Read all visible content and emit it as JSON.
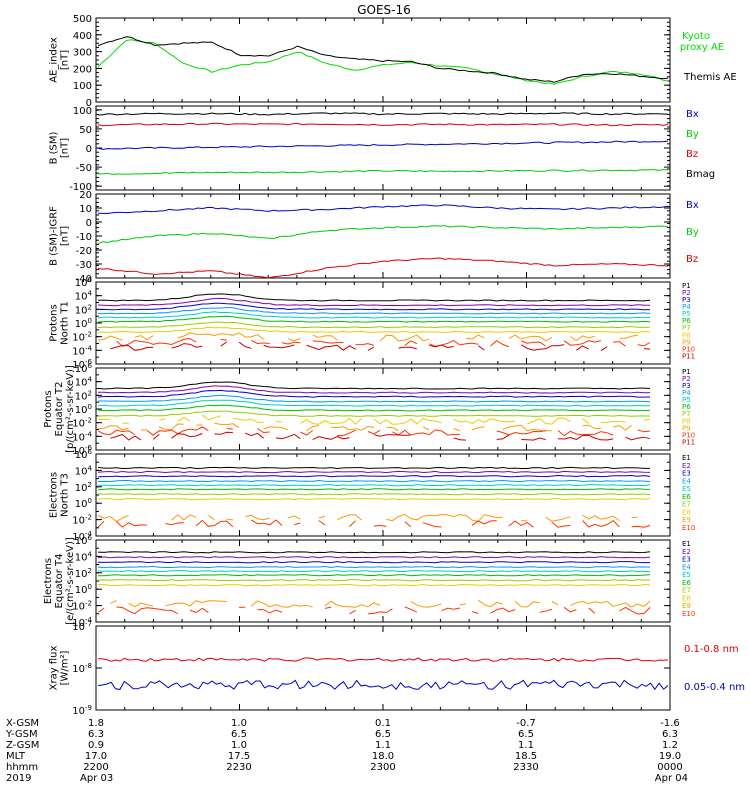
{
  "title": "GOES-16",
  "chart_data": [
    {
      "type": "line",
      "panel": "ae",
      "ylabel": [
        "AE_index",
        "[nT]"
      ],
      "ylim": [
        0,
        500
      ],
      "yticks": [
        "500",
        "400",
        "300",
        "200",
        "100",
        "0"
      ],
      "x": [
        0,
        0.05,
        0.1,
        0.15,
        0.2,
        0.25,
        0.3,
        0.35,
        0.4,
        0.45,
        0.5,
        0.55,
        0.6,
        0.65,
        0.7,
        0.75,
        0.8,
        0.85,
        0.9,
        0.95,
        1
      ],
      "series": [
        {
          "name": "Kyoto proxy AE",
          "color": "#00dd00",
          "values": [
            210,
            370,
            350,
            230,
            180,
            220,
            240,
            300,
            230,
            190,
            220,
            235,
            215,
            200,
            165,
            130,
            105,
            150,
            180,
            170,
            125
          ]
        },
        {
          "name": "Themis AE",
          "color": "#000000",
          "values": [
            340,
            390,
            340,
            350,
            355,
            280,
            275,
            330,
            275,
            255,
            245,
            240,
            200,
            185,
            170,
            135,
            120,
            165,
            170,
            155,
            140
          ]
        }
      ]
    },
    {
      "type": "line",
      "panel": "b-sm",
      "ylabel": [
        "B (SM)",
        "[nT]"
      ],
      "ylim": [
        -110,
        110
      ],
      "yticks": [
        "100",
        "50",
        "0",
        "-50",
        "-100"
      ],
      "x": [
        0,
        0.1,
        0.2,
        0.3,
        0.4,
        0.5,
        0.6,
        0.7,
        0.8,
        0.9,
        1
      ],
      "series": [
        {
          "name": "Bx",
          "color": "#0000cc",
          "values": [
            -2,
            0,
            2,
            4,
            6,
            8,
            10,
            12,
            14,
            16,
            18
          ]
        },
        {
          "name": "By",
          "color": "#00cc00",
          "values": [
            -68,
            -66,
            -64,
            -64,
            -62,
            -60,
            -61,
            -60,
            -59,
            -58,
            -58
          ]
        },
        {
          "name": "Bz",
          "color": "#dd0000",
          "values": [
            60,
            62,
            63,
            62,
            63,
            61,
            62,
            61,
            62,
            60,
            61
          ]
        },
        {
          "name": "Bmag",
          "color": "#000000",
          "values": [
            88,
            90,
            90,
            88,
            91,
            89,
            90,
            89,
            91,
            89,
            90
          ]
        }
      ]
    },
    {
      "type": "line",
      "panel": "b-sm-igrf",
      "ylabel": [
        "B (SM)-IGRF",
        "[nT]"
      ],
      "ylim": [
        -40,
        20
      ],
      "yticks": [
        "20",
        "10",
        "0",
        "-10",
        "-20",
        "-30",
        "-40"
      ],
      "x": [
        0,
        0.1,
        0.2,
        0.3,
        0.4,
        0.5,
        0.6,
        0.7,
        0.8,
        0.9,
        1
      ],
      "series": [
        {
          "name": "Bx",
          "color": "#0000cc",
          "values": [
            6,
            8,
            10,
            8,
            9,
            11,
            12,
            10,
            9,
            10,
            11
          ]
        },
        {
          "name": "By",
          "color": "#00cc00",
          "values": [
            -15,
            -10,
            -8,
            -12,
            -6,
            -4,
            -3,
            -4,
            -5,
            -4,
            -3
          ]
        },
        {
          "name": "Bz",
          "color": "#dd0000",
          "values": [
            -33,
            -37,
            -35,
            -40,
            -33,
            -28,
            -26,
            -28,
            -31,
            -30,
            -31
          ]
        }
      ]
    },
    {
      "type": "line",
      "panel": "protons-north",
      "ylabel": [
        "Protons",
        "North T1"
      ],
      "log": true,
      "ylim_exp": [
        -6,
        6
      ],
      "yticks_exp": [
        6,
        4,
        2,
        0,
        -2,
        -4,
        -6
      ],
      "channels": [
        "P1",
        "P2",
        "P3",
        "P4",
        "P5",
        "P6",
        "P7",
        "P8",
        "P9",
        "P10",
        "P11"
      ],
      "levels_exp": [
        3.3,
        2.6,
        2.0,
        1.4,
        0.8,
        0.2,
        -0.6,
        -1.3,
        -2.2,
        -3.0,
        -3.6
      ],
      "bump_exp": 1.0
    },
    {
      "type": "line",
      "panel": "protons-equator",
      "ylabel": [
        "Protons",
        "Equator T2",
        "[p/(cm²-s-sr-keV)]"
      ],
      "log": true,
      "ylim_exp": [
        -6,
        6
      ],
      "yticks_exp": [
        6,
        4,
        2,
        0,
        -2,
        -4,
        -6
      ],
      "channels": [
        "P1",
        "P2",
        "P3",
        "P4",
        "P5",
        "P6",
        "P7",
        "P8",
        "P9",
        "P10",
        "P11"
      ],
      "levels_exp": [
        3.0,
        2.4,
        1.8,
        1.1,
        0.5,
        -0.2,
        -1.0,
        -1.8,
        -2.8,
        -3.5,
        -4.1
      ],
      "bump_exp": 1.0
    },
    {
      "type": "line",
      "panel": "electrons-north",
      "ylabel": [
        "Electrons",
        "North T3"
      ],
      "log": true,
      "ylim_exp": [
        -4,
        6
      ],
      "yticks_exp": [
        6,
        4,
        2,
        0,
        -2,
        -4
      ],
      "channels": [
        "E1",
        "E2",
        "E3",
        "E4",
        "E5",
        "E6",
        "E7",
        "E8",
        "E9",
        "E10"
      ],
      "levels_exp": [
        4.3,
        3.8,
        3.3,
        2.7,
        2.2,
        1.7,
        1.1,
        0.5,
        -1.8,
        -2.5
      ],
      "bump_exp": 0
    },
    {
      "type": "line",
      "panel": "electrons-equator",
      "ylabel": [
        "Electrons",
        "Equator T4",
        "[e/(cm²-s-sr-keV)]"
      ],
      "log": true,
      "ylim_exp": [
        -4,
        6
      ],
      "yticks_exp": [
        6,
        4,
        2,
        0,
        -2,
        -4
      ],
      "channels": [
        "E1",
        "E2",
        "E3",
        "E4",
        "E5",
        "E6",
        "E7",
        "E8",
        "E9",
        "E10"
      ],
      "levels_exp": [
        4.5,
        3.9,
        3.3,
        2.7,
        2.2,
        1.7,
        1.1,
        0.5,
        -1.8,
        -2.6
      ],
      "bump_exp": 0
    },
    {
      "type": "line",
      "panel": "xray",
      "ylabel": [
        "Xray flux",
        "[W/m²]"
      ],
      "log": true,
      "ylim_exp": [
        -9,
        -7
      ],
      "yticks_exp": [
        -7,
        -8,
        -9
      ],
      "series": [
        {
          "name": "0.1-0.8 nm",
          "color": "#dd0000",
          "level_exp": -7.8
        },
        {
          "name": "0.05-0.4 nm",
          "color": "#0000cc",
          "level_exp": -8.4
        }
      ]
    }
  ],
  "channel_colors": [
    "#000000",
    "#8800aa",
    "#0000cc",
    "#0099ff",
    "#00cccc",
    "#00bb00",
    "#99cc00",
    "#eecc00",
    "#ff9900",
    "#ff3300",
    "#cc0000"
  ],
  "x_axis": {
    "rows": [
      {
        "label": "X-GSM",
        "values": [
          "1.8",
          "1.0",
          "0.1",
          "-0.7",
          "-1.6"
        ]
      },
      {
        "label": "Y-GSM",
        "values": [
          "6.3",
          "6.5",
          "6.5",
          "6.5",
          "6.3"
        ]
      },
      {
        "label": "Z-GSM",
        "values": [
          "0.9",
          "1.0",
          "1.1",
          "1.1",
          "1.2"
        ]
      },
      {
        "label": "MLT",
        "values": [
          "17.0",
          "17.5",
          "18.0",
          "18.5",
          "19.0"
        ]
      },
      {
        "label": "hhmm",
        "values": [
          "2200",
          "2230",
          "2300",
          "2330",
          "0000"
        ]
      },
      {
        "label": "2019",
        "values": [
          "Apr 03",
          "",
          "",
          "",
          "Apr 04"
        ]
      }
    ]
  }
}
